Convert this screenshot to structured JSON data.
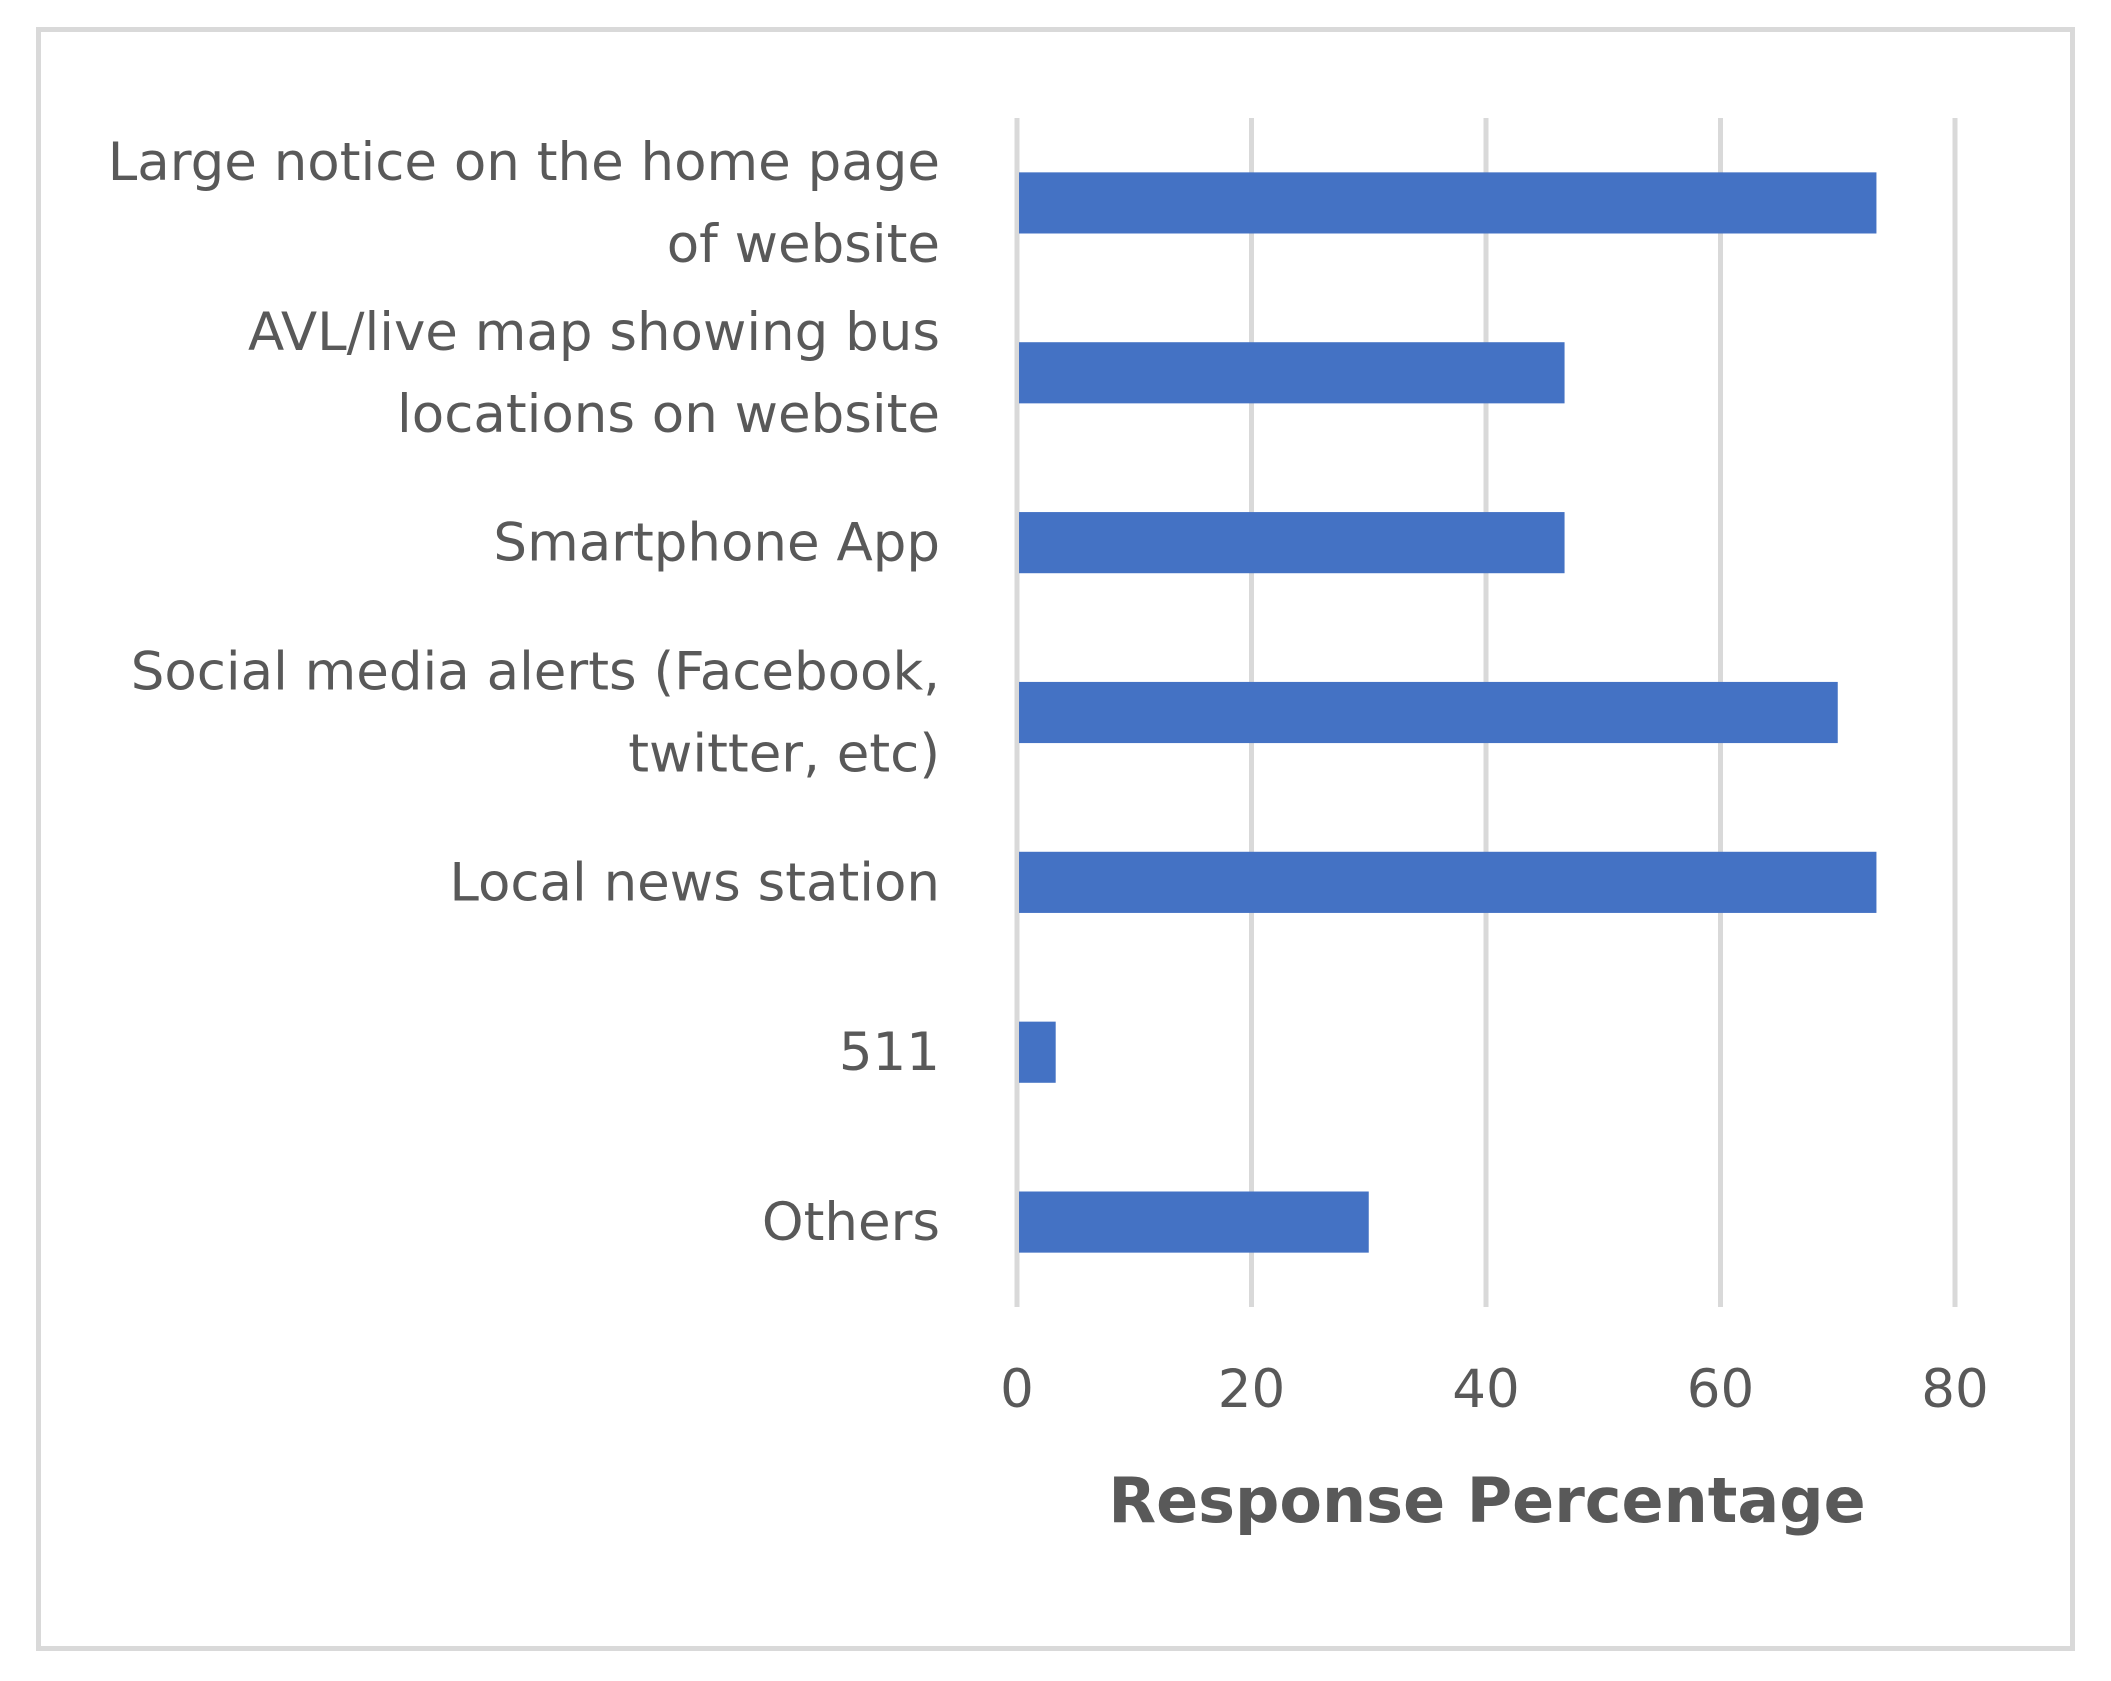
{
  "chart_data": {
    "type": "bar",
    "orientation": "horizontal",
    "categories": [
      [
        "Large notice on the home page",
        "of website"
      ],
      [
        "AVL/live map showing bus",
        "locations on website"
      ],
      [
        "Smartphone App"
      ],
      [
        "Social media alerts (Facebook,",
        "twitter, etc)"
      ],
      [
        "Local news station"
      ],
      [
        "511"
      ],
      [
        "Others"
      ]
    ],
    "values": [
      73.3,
      46.7,
      46.7,
      70,
      73.3,
      3.3,
      30
    ],
    "xticks": [
      "0",
      "20",
      "40",
      "60",
      "80"
    ],
    "xlim": [
      0,
      80
    ],
    "xlabel": "Response Percentage",
    "ylabel": "",
    "title": "",
    "grid": true,
    "legend": "none",
    "bar_color": "#4472c4",
    "grid_color": "#d9d9d9",
    "text_color": "#595959"
  }
}
